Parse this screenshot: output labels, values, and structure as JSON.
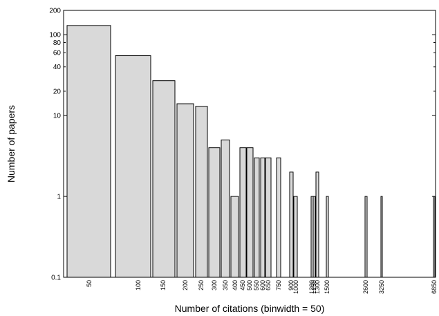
{
  "chart_data": {
    "type": "bar",
    "title": "",
    "xlabel": "Number of citations (binwidth = 50)",
    "ylabel": "Number of papers",
    "y_scale": "log",
    "ylim": [
      0.1,
      200
    ],
    "grid": false,
    "legend": "none",
    "y_ticks": [
      {
        "value": 0.1,
        "label": "0.1"
      },
      {
        "value": 1,
        "label": "1"
      },
      {
        "value": 10,
        "label": "10"
      },
      {
        "value": 20,
        "label": "20"
      },
      {
        "value": 40,
        "label": "40"
      },
      {
        "value": 60,
        "label": "60"
      },
      {
        "value": 80,
        "label": "80"
      },
      {
        "value": 100,
        "label": "100"
      },
      {
        "value": 200,
        "label": "200"
      }
    ],
    "categories": [
      "50",
      "100",
      "150",
      "200",
      "250",
      "300",
      "350",
      "400",
      "450",
      "500",
      "550",
      "600",
      "650",
      "750",
      "900",
      "1000",
      "1200",
      "1250",
      "1300",
      "1500",
      "2600",
      "3250",
      "6850"
    ],
    "values": [
      130,
      55,
      27,
      14,
      13,
      4,
      5,
      1,
      4,
      4,
      3,
      3,
      3,
      3,
      2,
      1,
      1,
      1,
      2,
      1,
      1,
      1,
      1
    ],
    "bar_color": "#d9d9d9",
    "edge_color": "#000000"
  }
}
